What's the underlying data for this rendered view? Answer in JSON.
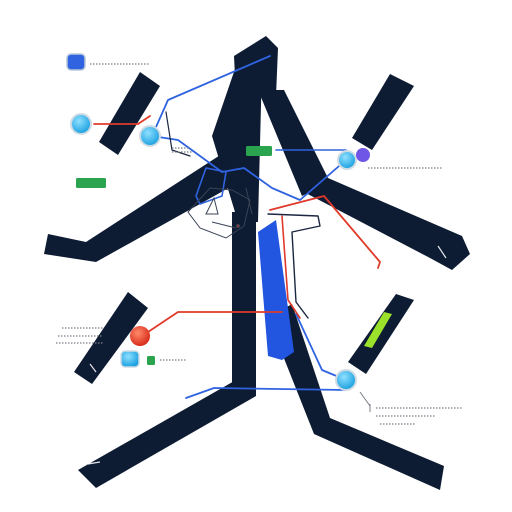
{
  "colors": {
    "background": "#ffffff",
    "frame": "#0d1b33",
    "blue_line": "#2f63e0",
    "red_line": "#e03a2a",
    "node_cyan": "#27b3e8",
    "node_purple": "#6f56e6",
    "node_red": "#e5442a",
    "badge_green": "#2aa44e",
    "badge_lime": "#9be02a",
    "blue_band": "#2255e0"
  },
  "nodes": [
    {
      "name": "blue-square-node",
      "color": "blue"
    },
    {
      "name": "cyan-node-left-top",
      "color": "cyan"
    },
    {
      "name": "cyan-node-left-mid",
      "color": "cyan"
    },
    {
      "name": "cyan-node-right-top",
      "color": "cyan"
    },
    {
      "name": "purple-node-right-top",
      "color": "purple"
    },
    {
      "name": "red-node-left-lower",
      "color": "red"
    },
    {
      "name": "cyan-node-left-lower",
      "color": "cyan"
    },
    {
      "name": "cyan-node-right-lower",
      "color": "cyan"
    }
  ],
  "badges": [
    {
      "name": "green-badge-top",
      "color": "green"
    },
    {
      "name": "green-badge-left",
      "color": "green"
    },
    {
      "name": "green-badge-small",
      "color": "green"
    },
    {
      "name": "lime-bar-right",
      "color": "lime"
    }
  ]
}
